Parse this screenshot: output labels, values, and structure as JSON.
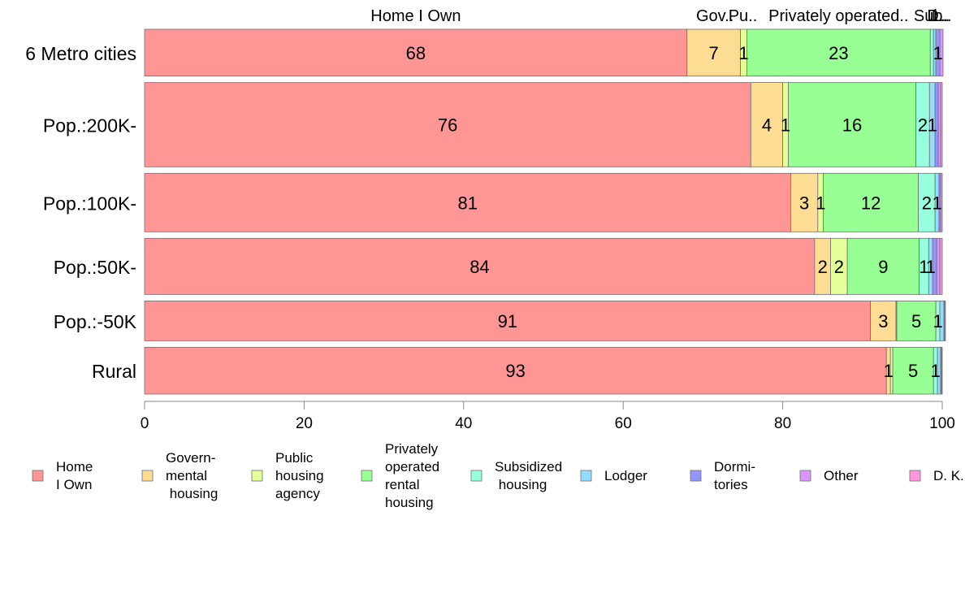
{
  "chart_data": {
    "type": "bar",
    "orientation": "horizontal",
    "stacked": true,
    "xlim": [
      0,
      100
    ],
    "x_ticks": [
      "0",
      "20",
      "40",
      "60",
      "80",
      "100"
    ],
    "categories": [
      "6 Metro cities",
      "Pop.:200K-",
      "Pop.:100K-",
      "Pop.:50K-",
      "Pop.:-50K",
      "Rural"
    ],
    "bar_weights": [
      1.0,
      1.8,
      1.25,
      1.2,
      0.85,
      1.0
    ],
    "top_labels": [
      {
        "text": "Home I Own",
        "at": 34
      },
      {
        "text": "Gov..",
        "at": 71.5
      },
      {
        "text": "Pu..",
        "at": 75
      },
      {
        "text": "Privately operated..",
        "at": 87
      },
      {
        "text": "Sub..",
        "at": 98.8
      },
      {
        "text": "D..",
        "at": 99.4
      },
      {
        "text": "L..",
        "at": 99.8
      }
    ],
    "series": [
      {
        "name": "Home\nI Own",
        "color": "#FF9595",
        "values": [
          68,
          76,
          81,
          84,
          91,
          93
        ]
      },
      {
        "name": "Govern-\nmental\n housing",
        "color": "#FFDC93",
        "values": [
          6.7,
          4,
          3.4,
          2,
          3.2,
          0.5
        ]
      },
      {
        "name": "Public\nhousing\nagency",
        "color": "#E3FF98",
        "values": [
          0.8,
          0.7,
          0.7,
          2.1,
          0.1,
          0.3
        ]
      },
      {
        "name": "Privately\noperated\nrental\nhousing",
        "color": "#97FF93",
        "values": [
          23,
          16,
          11.9,
          9,
          4.9,
          5.1
        ]
      },
      {
        "name": "Subsidized\n housing",
        "color": "#97FFDC",
        "values": [
          0.4,
          1.7,
          2.1,
          1.2,
          0.5,
          0.5
        ]
      },
      {
        "name": "Lodger",
        "color": "#95DCFF",
        "values": [
          0.3,
          0.7,
          0.5,
          0.5,
          0.5,
          0.4
        ]
      },
      {
        "name": "Dormi-\ntories",
        "color": "#9595FF",
        "values": [
          0.5,
          0.4,
          0.2,
          0.5,
          0.1,
          0.1
        ]
      },
      {
        "name": "Other",
        "color": "#DC95FF",
        "values": [
          0.4,
          0.3,
          0.2,
          0.4,
          0.1,
          0.1
        ]
      },
      {
        "name": "D. K.",
        "color": "#FF95DC",
        "values": [
          0,
          0.2,
          0,
          0.3,
          0,
          0
        ]
      }
    ],
    "data_labels": [
      [
        "68",
        "7",
        "1",
        "23",
        "1",
        "1"
      ],
      [
        "76",
        "4",
        "1",
        "16",
        "2",
        "1"
      ],
      [
        "81",
        "3",
        "1",
        "12",
        "2",
        "1"
      ],
      [
        "84",
        "2",
        "2",
        "9",
        "1",
        "1"
      ],
      [
        "91",
        "3",
        "5",
        "1"
      ],
      [
        "93",
        "1",
        "5",
        "1",
        "1"
      ]
    ],
    "legend_position": "bottom"
  }
}
